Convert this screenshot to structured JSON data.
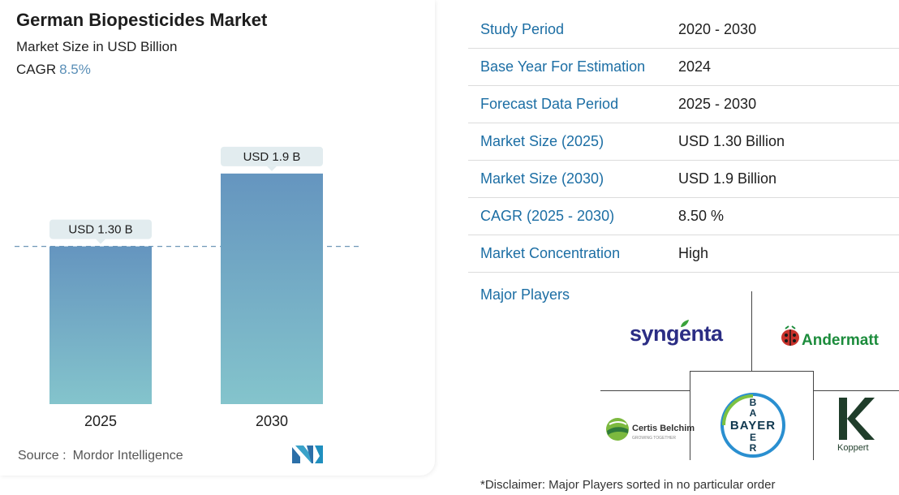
{
  "header": {
    "title": "German Biopesticides Market",
    "subtitle": "Market Size in USD Billion",
    "cagr_label": "CAGR",
    "cagr_value": "8.5%"
  },
  "chart_data": {
    "type": "bar",
    "categories": [
      "2025",
      "2030"
    ],
    "values": [
      1.3,
      1.9
    ],
    "data_labels": [
      "USD 1.30 B",
      "USD 1.9 B"
    ],
    "title": "German Biopesticides Market",
    "ylabel": "Market Size in USD Billion",
    "ylim": [
      0,
      2.2
    ],
    "grid": false,
    "reference_line_value": 1.3,
    "colors": {
      "bar_top": "#6595bf",
      "bar_bottom": "#84c4cc",
      "label_bg": "#e2ecef",
      "ref_line": "#6f97b7"
    }
  },
  "source": {
    "label": "Source :",
    "name": "Mordor Intelligence"
  },
  "summary": {
    "rows": [
      {
        "key": "Study Period",
        "value": "2020 - 2030"
      },
      {
        "key": "Base Year For Estimation",
        "value": "2024"
      },
      {
        "key": "Forecast Data Period",
        "value": "2025 - 2030"
      },
      {
        "key": "Market Size (2025)",
        "value": "USD 1.30 Billion"
      },
      {
        "key": "Market Size (2030)",
        "value": "USD 1.9 Billion"
      },
      {
        "key": "CAGR (2025 - 2030)",
        "value": "8.50 %"
      },
      {
        "key": "Market Concentration",
        "value": "High"
      }
    ]
  },
  "players": {
    "label": "Major Players",
    "logos": [
      {
        "name": "syngenta",
        "text": "syngenta"
      },
      {
        "name": "andermatt",
        "text": "Andermatt"
      },
      {
        "name": "certis-belchim",
        "text": "Certis Belchim",
        "subtext": "GROWING TOGETHER"
      },
      {
        "name": "bayer",
        "text": "BAYER"
      },
      {
        "name": "koppert",
        "text": "Koppert"
      }
    ]
  },
  "disclaimer": "*Disclaimer: Major Players sorted in no particular order",
  "colors": {
    "accent": "#1c6ea4",
    "cagr": "#5a8fb7"
  }
}
